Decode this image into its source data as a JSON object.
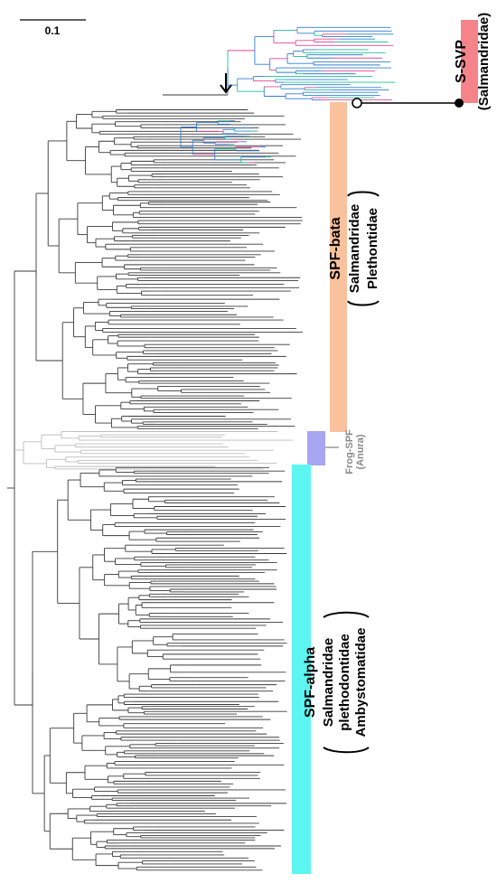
{
  "scale_bar": {
    "label": "0.1"
  },
  "clades": {
    "ssvp": {
      "name": "S-SVP",
      "taxa": [
        "(Salmandridae)"
      ],
      "color": "#f4838a"
    },
    "spf_beta": {
      "name": "SPF-bata",
      "taxa": [
        "Salmandridae",
        "Plethontidae"
      ],
      "color": "#f9c29d"
    },
    "frog_spf": {
      "name": "Frog-SPF",
      "taxa": [
        "(Anura)"
      ],
      "color": "#a7a6f3"
    },
    "spf_alpha": {
      "name": "SPF-alpha",
      "taxa": [
        "Salmandridae",
        "plethodontidae",
        "Ambystomatidae"
      ],
      "color": "#5cf5ef"
    }
  },
  "colors": {
    "branch_dark": "#3a3a3a",
    "branch_gray": "#bdbdbd",
    "branch_blue": "#2f7fd8",
    "branch_green": "#19c29a",
    "branch_pink": "#e0479b"
  }
}
